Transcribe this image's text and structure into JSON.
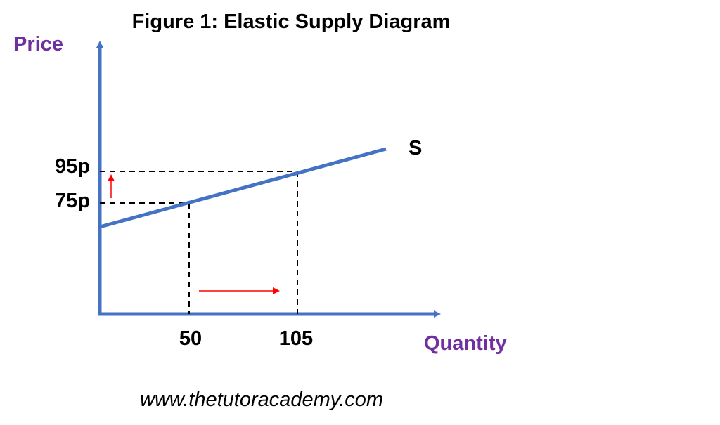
{
  "title": "Figure 1: Elastic Supply Diagram",
  "axes": {
    "y_label": "Price",
    "x_label": "Quantity",
    "label_color": "#7030A0",
    "axis_color": "#4472C4"
  },
  "curve": {
    "label": "S",
    "color": "#4472C4"
  },
  "points": [
    {
      "price_label": "75p",
      "quantity_label": "50"
    },
    {
      "price_label": "95p",
      "quantity_label": "105"
    }
  ],
  "arrows": {
    "color": "#FF0000",
    "price_arrow": "up",
    "quantity_arrow": "right"
  },
  "website": "www.thetutoracademy.com"
}
